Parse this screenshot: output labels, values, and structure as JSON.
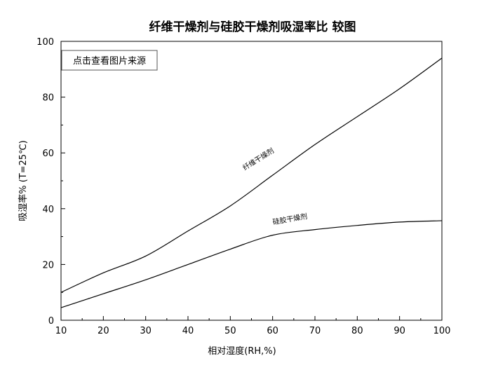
{
  "chart_data": {
    "type": "line",
    "title": "纤维干燥剂与硅胶干燥剂吸湿率比 较图",
    "xlabel": "相对湿度(RH,%)",
    "ylabel": "吸湿率%   (T=25℃)",
    "xlim": [
      10,
      100
    ],
    "ylim": [
      0,
      100
    ],
    "xticks": [
      10,
      20,
      30,
      40,
      50,
      60,
      70,
      80,
      90,
      100
    ],
    "yticks": [
      0,
      20,
      40,
      60,
      80,
      100
    ],
    "grid": false,
    "legend": "none",
    "series": [
      {
        "name": "纤维干燥剂",
        "x": [
          10,
          20,
          30,
          40,
          50,
          60,
          70,
          80,
          90,
          100
        ],
        "y": [
          10,
          17,
          23,
          32,
          41,
          52,
          63,
          73,
          83,
          94
        ]
      },
      {
        "name": "硅胶干燥剂",
        "x": [
          10,
          20,
          30,
          40,
          50,
          60,
          70,
          80,
          90,
          100
        ],
        "y": [
          4.5,
          9.5,
          14.5,
          20,
          25.5,
          30.5,
          32.5,
          34,
          35.2,
          35.7
        ]
      }
    ]
  },
  "overlay": {
    "view_image_button": "点击查看图片来源"
  }
}
